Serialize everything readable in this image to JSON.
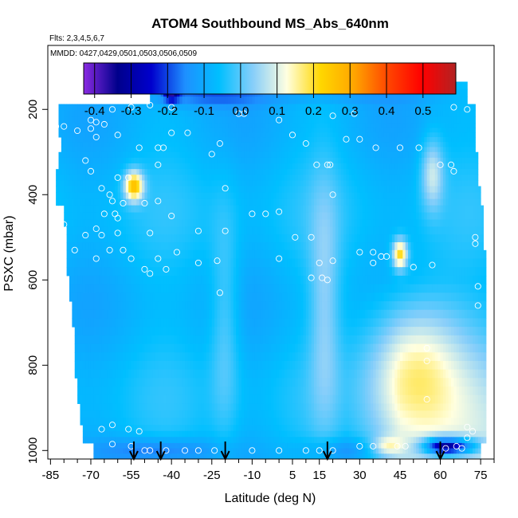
{
  "chart_data": {
    "type": "heatmap",
    "title": "ATOM4 Southbound MS_Abs_640nm",
    "annotations": [
      "Flts: 2,3,4,5,6,7",
      "MMDD: 0427,0429,0501,0503,0506,0509"
    ],
    "xlabel": "Latitude (deg N)",
    "ylabel": "PSXC (mbar)",
    "xlim": [
      -86,
      80
    ],
    "ylim": [
      1020,
      50
    ],
    "x_ticks": [
      -85,
      -70,
      -55,
      -40,
      -25,
      -10,
      5,
      15,
      30,
      45,
      60,
      75
    ],
    "x_tick_labels": [
      "-85",
      "-70",
      "-55",
      "-40",
      "-25",
      "-10",
      "5",
      "15",
      "30",
      "45",
      "60",
      "75"
    ],
    "x_minor_step": 5,
    "y_ticks": [
      200,
      400,
      600,
      800,
      1000
    ],
    "y_tick_labels": [
      "200",
      "400",
      "600",
      "800",
      "1000"
    ],
    "colorbar": {
      "ticks": [
        -0.4,
        -0.3,
        -0.2,
        -0.1,
        0.0,
        0.1,
        0.2,
        0.3,
        0.4,
        0.5
      ],
      "tick_labels": [
        "-0.4",
        "-0.3",
        "-0.2",
        "-0.1",
        "0.0",
        "0.1",
        "0.2",
        "0.3",
        "0.4",
        "0.5"
      ],
      "range": [
        -0.43,
        0.59
      ],
      "colors": [
        "#8a2be2",
        "#00008b",
        "#0000cd",
        "#1e90ff",
        "#00bfff",
        "#87cefa",
        "#ffffe0",
        "#ffd700",
        "#ffa500",
        "#ff4500",
        "#ff0000",
        "#b22222"
      ]
    },
    "arrows_lat": [
      -54,
      -44,
      -20,
      18,
      60
    ],
    "domain_rows": [
      {
        "p": 160,
        "lat_min": -48,
        "lat_max": 70
      },
      {
        "p": 215,
        "lat_min": -82,
        "lat_max": 73
      },
      {
        "p": 250,
        "lat_min": -82,
        "lat_max": 73
      },
      {
        "p": 280,
        "lat_min": -81,
        "lat_max": 73
      },
      {
        "p": 320,
        "lat_min": -82,
        "lat_max": 74
      },
      {
        "p": 360,
        "lat_min": -83,
        "lat_max": 74
      },
      {
        "p": 400,
        "lat_min": -83,
        "lat_max": 75
      },
      {
        "p": 450,
        "lat_min": -80,
        "lat_max": 76
      },
      {
        "p": 500,
        "lat_min": -79,
        "lat_max": 76
      },
      {
        "p": 560,
        "lat_min": -79,
        "lat_max": 77
      },
      {
        "p": 620,
        "lat_min": -78,
        "lat_max": 77
      },
      {
        "p": 680,
        "lat_min": -77,
        "lat_max": 77
      },
      {
        "p": 740,
        "lat_min": -76,
        "lat_max": 77
      },
      {
        "p": 800,
        "lat_min": -76,
        "lat_max": 77
      },
      {
        "p": 860,
        "lat_min": -75,
        "lat_max": 77
      },
      {
        "p": 920,
        "lat_min": -74,
        "lat_max": 77
      },
      {
        "p": 960,
        "lat_min": -73,
        "lat_max": 77
      },
      {
        "p": 1005,
        "lat_min": -69,
        "lat_max": 75
      }
    ],
    "background_value": -0.07,
    "features": [
      {
        "lat": -40,
        "p": 160,
        "value": -0.3,
        "lat_width": 2,
        "p_width": 15
      },
      {
        "lat": -30,
        "p": 165,
        "value": -0.17,
        "lat_width": 15,
        "p_width": 20
      },
      {
        "lat": 20,
        "p": 165,
        "value": -0.12,
        "lat_width": 25,
        "p_width": 15
      },
      {
        "lat": -54,
        "p": 380,
        "value": 0.25,
        "lat_width": 2.5,
        "p_width": 25
      },
      {
        "lat": 45,
        "p": 540,
        "value": 0.22,
        "lat_width": 2,
        "p_width": 25
      },
      {
        "lat": 57,
        "p": 350,
        "value": 0.08,
        "lat_width": 3,
        "p_width": 60
      },
      {
        "lat": 50,
        "p": 800,
        "value": 0.1,
        "lat_width": 12,
        "p_width": 120
      },
      {
        "lat": 60,
        "p": 990,
        "value": -0.35,
        "lat_width": 5,
        "p_width": 15
      },
      {
        "lat": 67,
        "p": 990,
        "value": -0.3,
        "lat_width": 6,
        "p_width": 15
      },
      {
        "lat": 40,
        "p": 990,
        "value": 0.06,
        "lat_width": 4,
        "p_width": 15
      },
      {
        "lat": -45,
        "p": 1000,
        "value": -0.18,
        "lat_width": 15,
        "p_width": 20
      },
      {
        "lat": 25,
        "p": 1000,
        "value": -0.15,
        "lat_width": 12,
        "p_width": 20
      },
      {
        "lat": -20,
        "p": 700,
        "value": 0.02,
        "lat_width": 4,
        "p_width": 200
      },
      {
        "lat": 17,
        "p": 650,
        "value": 0.03,
        "lat_width": 4,
        "p_width": 200
      }
    ],
    "sample_points": [
      {
        "lat": -83,
        "p": 240
      },
      {
        "lat": -80,
        "p": 240
      },
      {
        "lat": -75,
        "p": 250
      },
      {
        "lat": -70,
        "p": 225
      },
      {
        "lat": -70,
        "p": 245
      },
      {
        "lat": -68,
        "p": 230
      },
      {
        "lat": -65,
        "p": 235
      },
      {
        "lat": -62,
        "p": 200
      },
      {
        "lat": -55,
        "p": 195
      },
      {
        "lat": -48,
        "p": 190
      },
      {
        "lat": -40,
        "p": 195
      },
      {
        "lat": -15,
        "p": 210
      },
      {
        "lat": -13,
        "p": 210
      },
      {
        "lat": 0,
        "p": 225
      },
      {
        "lat": 20,
        "p": 215
      },
      {
        "lat": 28,
        "p": 210
      },
      {
        "lat": 65,
        "p": 195
      },
      {
        "lat": 70,
        "p": 200
      },
      {
        "lat": -68,
        "p": 265
      },
      {
        "lat": -60,
        "p": 260
      },
      {
        "lat": -40,
        "p": 255
      },
      {
        "lat": -34,
        "p": 255
      },
      {
        "lat": 5,
        "p": 260
      },
      {
        "lat": -52,
        "p": 290
      },
      {
        "lat": -45,
        "p": 290
      },
      {
        "lat": -43,
        "p": 290
      },
      {
        "lat": -22,
        "p": 280
      },
      {
        "lat": -25,
        "p": 305
      },
      {
        "lat": 10,
        "p": 280
      },
      {
        "lat": 25,
        "p": 270
      },
      {
        "lat": 30,
        "p": 270
      },
      {
        "lat": 36,
        "p": 290
      },
      {
        "lat": 45,
        "p": 290
      },
      {
        "lat": 52,
        "p": 290
      },
      {
        "lat": -72,
        "p": 320
      },
      {
        "lat": -70,
        "p": 345
      },
      {
        "lat": -45,
        "p": 330
      },
      {
        "lat": -60,
        "p": 360
      },
      {
        "lat": -56,
        "p": 360
      },
      {
        "lat": -20,
        "p": 385
      },
      {
        "lat": 14,
        "p": 330
      },
      {
        "lat": 18,
        "p": 330
      },
      {
        "lat": 19,
        "p": 330
      },
      {
        "lat": 60,
        "p": 330
      },
      {
        "lat": 64,
        "p": 330
      },
      {
        "lat": 65,
        "p": 345
      },
      {
        "lat": -66,
        "p": 385
      },
      {
        "lat": -63,
        "p": 400
      },
      {
        "lat": -62,
        "p": 415
      },
      {
        "lat": -58,
        "p": 420
      },
      {
        "lat": -50,
        "p": 420
      },
      {
        "lat": -45,
        "p": 415
      },
      {
        "lat": 20,
        "p": 400
      },
      {
        "lat": -61,
        "p": 445
      },
      {
        "lat": -65,
        "p": 445
      },
      {
        "lat": -60,
        "p": 455
      },
      {
        "lat": -40,
        "p": 450
      },
      {
        "lat": -10,
        "p": 445
      },
      {
        "lat": -5,
        "p": 445
      },
      {
        "lat": 0,
        "p": 440
      },
      {
        "lat": -80,
        "p": 470
      },
      {
        "lat": -68,
        "p": 480
      },
      {
        "lat": -72,
        "p": 495
      },
      {
        "lat": -66,
        "p": 495
      },
      {
        "lat": -60,
        "p": 490
      },
      {
        "lat": -48,
        "p": 490
      },
      {
        "lat": -30,
        "p": 485
      },
      {
        "lat": -20,
        "p": 485
      },
      {
        "lat": 6,
        "p": 500
      },
      {
        "lat": 12,
        "p": 500
      },
      {
        "lat": -76,
        "p": 530
      },
      {
        "lat": -63,
        "p": 530
      },
      {
        "lat": -58,
        "p": 530
      },
      {
        "lat": -38,
        "p": 535
      },
      {
        "lat": -45,
        "p": 550
      },
      {
        "lat": -68,
        "p": 550
      },
      {
        "lat": -55,
        "p": 550
      },
      {
        "lat": -50,
        "p": 575
      },
      {
        "lat": -30,
        "p": 560
      },
      {
        "lat": -23,
        "p": 555
      },
      {
        "lat": 30,
        "p": 535
      },
      {
        "lat": 35,
        "p": 535
      },
      {
        "lat": 38,
        "p": 545
      },
      {
        "lat": 40,
        "p": 545
      },
      {
        "lat": 73,
        "p": 500
      },
      {
        "lat": 73,
        "p": 515
      },
      {
        "lat": 0,
        "p": 550
      },
      {
        "lat": 15,
        "p": 560
      },
      {
        "lat": 20,
        "p": 555
      },
      {
        "lat": 35,
        "p": 560
      },
      {
        "lat": 50,
        "p": 570
      },
      {
        "lat": 57,
        "p": 565
      },
      {
        "lat": -48,
        "p": 585
      },
      {
        "lat": -42,
        "p": 575
      },
      {
        "lat": 12,
        "p": 595
      },
      {
        "lat": 16,
        "p": 595
      },
      {
        "lat": 18,
        "p": 600
      },
      {
        "lat": -22,
        "p": 630
      },
      {
        "lat": 74,
        "p": 615
      },
      {
        "lat": 74,
        "p": 660
      },
      {
        "lat": 55,
        "p": 760
      },
      {
        "lat": 55,
        "p": 790
      },
      {
        "lat": 55,
        "p": 880
      },
      {
        "lat": -66,
        "p": 950
      },
      {
        "lat": -62,
        "p": 940
      },
      {
        "lat": -56,
        "p": 950
      },
      {
        "lat": -52,
        "p": 955
      },
      {
        "lat": 70,
        "p": 945
      },
      {
        "lat": 72,
        "p": 955
      },
      {
        "lat": 70,
        "p": 970
      },
      {
        "lat": -62,
        "p": 985
      },
      {
        "lat": -55,
        "p": 990
      },
      {
        "lat": -50,
        "p": 1000
      },
      {
        "lat": -48,
        "p": 1000
      },
      {
        "lat": -42,
        "p": 1000
      },
      {
        "lat": -35,
        "p": 1000
      },
      {
        "lat": -30,
        "p": 1000
      },
      {
        "lat": -24,
        "p": 1000
      },
      {
        "lat": -10,
        "p": 1000
      },
      {
        "lat": 0,
        "p": 1000
      },
      {
        "lat": 10,
        "p": 1000
      },
      {
        "lat": 15,
        "p": 1000
      },
      {
        "lat": 20,
        "p": 1000
      },
      {
        "lat": 30,
        "p": 990
      },
      {
        "lat": 35,
        "p": 990
      },
      {
        "lat": 44,
        "p": 990
      },
      {
        "lat": 47,
        "p": 990
      },
      {
        "lat": 62,
        "p": 995
      },
      {
        "lat": 66,
        "p": 990
      },
      {
        "lat": 68,
        "p": 995
      }
    ]
  }
}
